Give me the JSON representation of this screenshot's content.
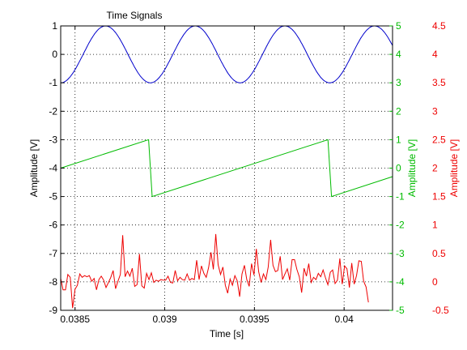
{
  "chart_data": {
    "type": "line",
    "title": "Time Signals",
    "xlabel": "Time [s]",
    "x_ticks": [
      "0.0385",
      "0.039",
      "0.0395",
      "0.04"
    ],
    "x_tick_values": [
      0.0385,
      0.039,
      0.0395,
      0.04
    ],
    "xlim": [
      0.03842,
      0.04027
    ],
    "grid": true,
    "axes": [
      {
        "side": "left",
        "ylabel": "Amplitude [V]",
        "color": "#000000",
        "ylim": [
          -9,
          1
        ],
        "ticks": [
          "1",
          "0",
          "-1",
          "-2",
          "-3",
          "-4",
          "-5",
          "-6",
          "-7",
          "-8",
          "-9"
        ],
        "tick_values": [
          1,
          0,
          -1,
          -2,
          -3,
          -4,
          -5,
          -6,
          -7,
          -8,
          -9
        ]
      },
      {
        "side": "right-inner",
        "ylabel": "Amplitude [V]",
        "color": "#00bb00",
        "ylim": [
          -5,
          5
        ],
        "ticks": [
          "5",
          "4",
          "3",
          "2",
          "1",
          "0",
          "-1",
          "-2",
          "-3",
          "-4",
          "-5"
        ],
        "tick_values": [
          5,
          4,
          3,
          2,
          1,
          0,
          -1,
          -2,
          -3,
          -4,
          -5
        ]
      },
      {
        "side": "right-outer",
        "ylabel": "Amplitude [V]",
        "color": "#ee0000",
        "ylim": [
          -0.5,
          4.5
        ],
        "ticks": [
          "4.5",
          "4",
          "3.5",
          "3",
          "2.5",
          "2",
          "1.5",
          "1",
          "0.5",
          "0",
          "-0.5"
        ],
        "tick_values": [
          4.5,
          4,
          3.5,
          3,
          2.5,
          2,
          1.5,
          1,
          0.5,
          0,
          -0.5
        ]
      }
    ],
    "series": [
      {
        "axis": 0,
        "color": "#0000cc",
        "kind": "sine",
        "amplitude": 1,
        "period": 0.0005,
        "peak_at": 0.03917
      },
      {
        "axis": 1,
        "color": "#00bb00",
        "kind": "sawtooth",
        "points": [
          [
            0.03842,
            0.0
          ],
          [
            0.03891,
            1.0
          ],
          [
            0.03893,
            -1.0
          ],
          [
            0.03991,
            1.0
          ],
          [
            0.03993,
            -1.0
          ],
          [
            0.04027,
            -0.3
          ]
        ]
      },
      {
        "axis": 2,
        "color": "#ee0000",
        "kind": "noise",
        "x_start": 0.03842,
        "x_step": 1.33e-05,
        "values": [
          0.06,
          -0.14,
          -0.14,
          0.13,
          0.08,
          -0.46,
          -0.13,
          -0.06,
          0.14,
          0.08,
          0.11,
          0.09,
          0.11,
          0.01,
          0.06,
          -0.14,
          0.04,
          0.1,
          0.03,
          -0.1,
          -0.01,
          0.08,
          0.2,
          -0.12,
          0.01,
          0.13,
          0.82,
          0.09,
          0.19,
          0.1,
          0.24,
          -0.08,
          -0.05,
          0.49,
          -0.07,
          -0.11,
          0.15,
          0.04,
          0.16,
          -0.01,
          0.03,
          0.01,
          0.04,
          0.03,
          0.03,
          0.1,
          -0.01,
          -0.02,
          0.2,
          0.02,
          0.08,
          0.04,
          0.03,
          0.14,
          0.03,
          0.06,
          0.04,
          0.38,
          0.04,
          0.28,
          0.15,
          0.08,
          0.25,
          0.52,
          0.22,
          0.84,
          0.3,
          0.13,
          0.26,
          -0.06,
          -0.2,
          0.05,
          -0.06,
          0.11,
          0.02,
          -0.26,
          0.14,
          0.29,
          0.04,
          -0.08,
          0.32,
          0.12,
          0.58,
          0.18,
          -0.01,
          0.14,
          0.04,
          0.26,
          0.74,
          0.29,
          0.18,
          0.2,
          0.45,
          0.04,
          0.14,
          0.23,
          0.03,
          0.39,
          0.39,
          0.22,
          0.09,
          -0.19,
          0.24,
          0.1,
          0.32,
          -0.01,
          0.08,
          0.04,
          0.15,
          0.09,
          0.21,
          0.07,
          -0.05,
          0.17,
          0.21,
          -0.03,
          0.03,
          0.41,
          -0.04,
          0.28,
          0.23,
          -0.1,
          0.33,
          -0.04,
          0.11,
          0.37,
          0.36,
          0.01,
          -0.09,
          -0.36
        ]
      }
    ]
  }
}
